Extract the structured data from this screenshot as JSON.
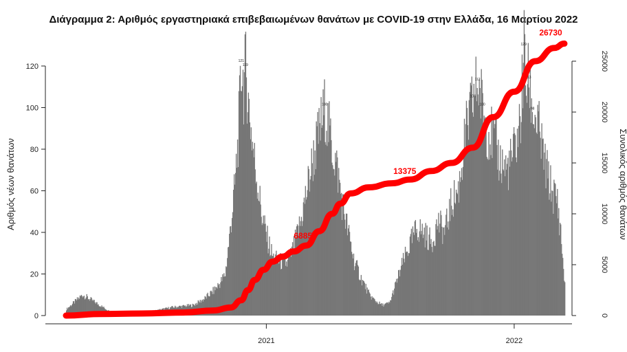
{
  "chart_data": {
    "type": "bar",
    "title": "Διάγραμμα 2: Αριθμός εργαστηριακά επιβεβαιωμένων θανάτων με COVID-19 στην Ελλάδα, 16 Μαρτίου 2022",
    "ylabel": "Αριθμός νέων θανάτων",
    "y2label": "Συνολικός αριθμός θανάτων",
    "ylim": [
      0,
      130
    ],
    "y2lim": [
      0,
      28000
    ],
    "yticks": [
      0,
      20,
      40,
      60,
      80,
      100,
      120
    ],
    "y2ticks": [
      0,
      5000,
      10000,
      15000,
      20000,
      25000
    ],
    "xticks": [
      {
        "label": "2021",
        "date": "2021-01-01"
      },
      {
        "label": "2022",
        "date": "2022-01-01"
      }
    ],
    "xrange": [
      "2020-03-12",
      "2022-03-16"
    ],
    "bar_color": "#777777",
    "line_color": "#ff0000",
    "daily_deaths": {
      "note_dates_are_approximate": true,
      "x": [
        "2020-03-12",
        "2020-04-05",
        "2020-05-15",
        "2020-06-15",
        "2020-07-15",
        "2020-08-15",
        "2020-09-15",
        "2020-10-01",
        "2020-10-15",
        "2020-10-25",
        "2020-11-01",
        "2020-11-08",
        "2020-11-15",
        "2020-11-20",
        "2020-11-25",
        "2020-11-28",
        "2020-12-01",
        "2020-12-05",
        "2020-12-10",
        "2020-12-15",
        "2020-12-20",
        "2020-12-25",
        "2021-01-01",
        "2021-01-10",
        "2021-01-20",
        "2021-02-01",
        "2021-02-10",
        "2021-02-20",
        "2021-03-01",
        "2021-03-10",
        "2021-03-20",
        "2021-03-28",
        "2021-04-02",
        "2021-04-08",
        "2021-04-15",
        "2021-04-22",
        "2021-05-01",
        "2021-05-10",
        "2021-05-20",
        "2021-06-01",
        "2021-06-10",
        "2021-06-20",
        "2021-07-01",
        "2021-07-10",
        "2021-07-20",
        "2021-08-01",
        "2021-08-10",
        "2021-08-20",
        "2021-09-01",
        "2021-09-10",
        "2021-09-20",
        "2021-10-01",
        "2021-10-10",
        "2021-10-20",
        "2021-11-01",
        "2021-11-08",
        "2021-11-15",
        "2021-11-22",
        "2021-12-01",
        "2021-12-10",
        "2021-12-20",
        "2021-12-28",
        "2022-01-05",
        "2022-01-10",
        "2022-01-15",
        "2022-01-18",
        "2022-01-22",
        "2022-01-28",
        "2022-02-05",
        "2022-02-15",
        "2022-02-25",
        "2022-03-05",
        "2022-03-10",
        "2022-03-16"
      ],
      "y": [
        3,
        10,
        2,
        1,
        2,
        4,
        5,
        8,
        12,
        16,
        20,
        40,
        62,
        85,
        121,
        110,
        119,
        103,
        86,
        72,
        60,
        48,
        38,
        28,
        26,
        25,
        33,
        45,
        60,
        75,
        89,
        100,
        90,
        80,
        70,
        55,
        40,
        26,
        18,
        10,
        7,
        5,
        6,
        15,
        25,
        35,
        42,
        40,
        35,
        45,
        40,
        55,
        60,
        85,
        104,
        112,
        100,
        90,
        85,
        75,
        70,
        75,
        85,
        95,
        129,
        110,
        113,
        98,
        90,
        72,
        60,
        55,
        40,
        14
      ]
    },
    "visible_data_labels": [
      121,
      119,
      112,
      100,
      93,
      104,
      112,
      129,
      113,
      98
    ],
    "cumulative_series": {
      "name": "Συνολικός αριθμός θανάτων",
      "x": [
        "2020-03-12",
        "2020-05-01",
        "2020-07-01",
        "2020-09-01",
        "2020-10-15",
        "2020-11-10",
        "2020-11-25",
        "2020-12-05",
        "2020-12-15",
        "2020-12-28",
        "2021-01-10",
        "2021-01-25",
        "2021-02-10",
        "2021-03-01",
        "2021-03-20",
        "2021-04-08",
        "2021-04-20",
        "2021-05-05",
        "2021-06-01",
        "2021-07-05",
        "2021-08-01",
        "2021-09-01",
        "2021-10-01",
        "2021-11-01",
        "2021-12-01",
        "2022-01-01",
        "2022-02-01",
        "2022-03-01",
        "2022-03-16"
      ],
      "y": [
        0,
        150,
        200,
        300,
        500,
        800,
        1500,
        2500,
        3500,
        4500,
        5300,
        5800,
        6300,
        6885,
        8300,
        10000,
        11000,
        12000,
        12600,
        13000,
        13375,
        14200,
        15000,
        16500,
        19500,
        22000,
        25000,
        26300,
        26730
      ]
    },
    "cumulative_labels": [
      {
        "text": "6885",
        "date": "2021-03-01",
        "value": 6885
      },
      {
        "text": "13375",
        "date": "2021-08-01",
        "value": 13375
      },
      {
        "text": "26730",
        "date": "2022-03-16",
        "value": 26730
      }
    ]
  }
}
